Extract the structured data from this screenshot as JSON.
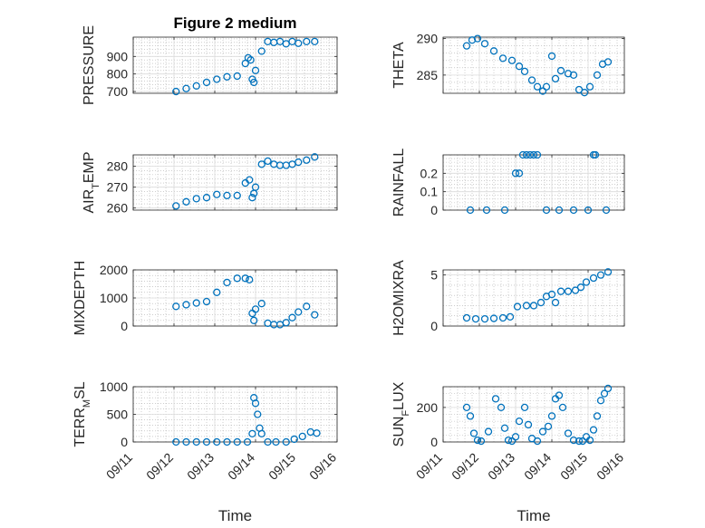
{
  "colors": {
    "marker": "#0072BD",
    "axis": "#262626",
    "grid": "#dcdcdc",
    "minor_grid": "#b0b0b0",
    "background": "#ffffff"
  },
  "x_tick_labels": [
    "09/11",
    "09/12",
    "09/13",
    "09/14",
    "09/15",
    "09/16"
  ],
  "x_axis_label": "Time",
  "chart_data": [
    {
      "type": "scatter",
      "title": "Figure 2 medium",
      "ylabel": "PRESSURE",
      "ylim": [
        690,
        1010
      ],
      "yticks": [
        700,
        800,
        900
      ],
      "ytick_labels": [
        "700",
        "800",
        "900"
      ],
      "xlim": [
        0,
        5
      ],
      "grid": true,
      "marker": "open-circle",
      "x": [
        1.05,
        1.3,
        1.55,
        1.8,
        2.05,
        2.3,
        2.55,
        2.75,
        2.82,
        2.88,
        2.92,
        2.96,
        3.0,
        3.15,
        3.3,
        3.45,
        3.6,
        3.75,
        3.9,
        4.05,
        4.25,
        4.45
      ],
      "y": [
        700,
        717,
        732,
        752,
        770,
        784,
        788,
        860,
        892,
        880,
        770,
        752,
        820,
        930,
        985,
        980,
        985,
        972,
        985,
        975,
        985,
        985
      ]
    },
    {
      "type": "scatter",
      "title": "",
      "ylabel": "THETA",
      "ylim": [
        282.5,
        290.2
      ],
      "yticks": [
        285,
        290
      ],
      "ytick_labels": [
        "285",
        "290"
      ],
      "xlim": [
        0,
        5
      ],
      "grid": true,
      "marker": "open-circle",
      "x": [
        0.65,
        0.8,
        0.95,
        1.15,
        1.4,
        1.65,
        1.9,
        2.1,
        2.25,
        2.45,
        2.6,
        2.75,
        2.85,
        3.0,
        3.1,
        3.25,
        3.45,
        3.6,
        3.75,
        3.9,
        4.05,
        4.25,
        4.4,
        4.55
      ],
      "y": [
        289.0,
        289.8,
        290.0,
        289.3,
        288.3,
        287.3,
        287.0,
        286.2,
        285.5,
        284.3,
        283.4,
        282.8,
        283.4,
        287.6,
        284.5,
        285.6,
        285.2,
        285.0,
        283.0,
        282.6,
        283.4,
        285.0,
        286.5,
        286.8
      ]
    },
    {
      "type": "scatter",
      "title": "",
      "ylabel": "AIR_TEMP",
      "ylim": [
        259,
        285.5
      ],
      "yticks": [
        260,
        270,
        280
      ],
      "ytick_labels": [
        "260",
        "270",
        "280"
      ],
      "xlim": [
        0,
        5
      ],
      "grid": true,
      "marker": "open-circle",
      "x": [
        1.05,
        1.3,
        1.55,
        1.8,
        2.05,
        2.3,
        2.55,
        2.75,
        2.85,
        2.92,
        2.96,
        3.0,
        3.15,
        3.3,
        3.45,
        3.6,
        3.75,
        3.9,
        4.05,
        4.25,
        4.45
      ],
      "y": [
        261,
        263,
        264.5,
        265,
        266.5,
        266,
        266,
        272,
        273.5,
        265,
        267,
        270,
        281,
        282.5,
        281,
        280.5,
        280.5,
        281,
        282,
        283,
        284.5
      ]
    },
    {
      "type": "scatter",
      "title": "",
      "ylabel": "RAINFALL",
      "ylim": [
        0,
        0.3
      ],
      "yticks": [
        0,
        0.1,
        0.2
      ],
      "ytick_labels": [
        "0",
        "0.1",
        "0.2"
      ],
      "xlim": [
        0,
        5
      ],
      "grid": true,
      "marker": "open-circle",
      "x": [
        0.75,
        1.2,
        1.7,
        2.0,
        2.1,
        2.2,
        2.3,
        2.4,
        2.5,
        2.6,
        2.85,
        3.2,
        3.6,
        4.0,
        4.15,
        4.2,
        4.5
      ],
      "y": [
        0,
        0,
        0,
        0.2,
        0.2,
        0.3,
        0.3,
        0.3,
        0.3,
        0.3,
        0,
        0,
        0,
        0,
        0.3,
        0.3,
        0
      ]
    },
    {
      "type": "scatter",
      "title": "",
      "ylabel": "MIXDEPTH",
      "ylim": [
        0,
        2000
      ],
      "yticks": [
        0,
        1000,
        2000
      ],
      "ytick_labels": [
        "0",
        "1000",
        "2000"
      ],
      "xlim": [
        0,
        5
      ],
      "grid": true,
      "marker": "open-circle",
      "x": [
        1.05,
        1.3,
        1.55,
        1.8,
        2.05,
        2.3,
        2.55,
        2.75,
        2.85,
        2.92,
        2.96,
        3.0,
        3.15,
        3.3,
        3.45,
        3.6,
        3.75,
        3.9,
        4.05,
        4.25,
        4.45
      ],
      "y": [
        700,
        760,
        820,
        870,
        1200,
        1550,
        1700,
        1700,
        1650,
        450,
        200,
        600,
        800,
        100,
        50,
        50,
        120,
        300,
        500,
        700,
        400
      ]
    },
    {
      "type": "scatter",
      "title": "",
      "ylabel": "H2OMIXRA",
      "ylim": [
        0,
        5.5
      ],
      "yticks": [
        0,
        5
      ],
      "ytick_labels": [
        "0",
        "5"
      ],
      "xlim": [
        0,
        5
      ],
      "grid": true,
      "marker": "open-circle",
      "x": [
        0.65,
        0.9,
        1.15,
        1.4,
        1.65,
        1.85,
        2.05,
        2.3,
        2.5,
        2.7,
        2.85,
        3.0,
        3.1,
        3.25,
        3.45,
        3.65,
        3.8,
        3.95,
        4.15,
        4.35,
        4.55
      ],
      "y": [
        0.8,
        0.7,
        0.7,
        0.75,
        0.8,
        0.9,
        1.9,
        2.0,
        2.0,
        2.3,
        2.9,
        3.1,
        2.3,
        3.4,
        3.4,
        3.5,
        3.8,
        4.3,
        4.7,
        5.0,
        5.3
      ]
    },
    {
      "type": "scatter",
      "title": "",
      "ylabel": "TERR_MSL",
      "ylim": [
        0,
        1000
      ],
      "yticks": [
        0,
        500,
        1000
      ],
      "ytick_labels": [
        "0",
        "500",
        "1000"
      ],
      "xlim": [
        0,
        5
      ],
      "grid": true,
      "marker": "open-circle",
      "x": [
        1.05,
        1.3,
        1.55,
        1.8,
        2.05,
        2.3,
        2.55,
        2.8,
        2.92,
        2.96,
        3.0,
        3.05,
        3.1,
        3.15,
        3.3,
        3.5,
        3.75,
        3.95,
        4.15,
        4.35,
        4.5
      ],
      "y": [
        0,
        0,
        0,
        0,
        0,
        0,
        0,
        0,
        150,
        800,
        700,
        500,
        250,
        150,
        0,
        0,
        0,
        50,
        100,
        180,
        160
      ]
    },
    {
      "type": "scatter",
      "title": "",
      "ylabel": "SUN_FLUX",
      "ylim": [
        0,
        320
      ],
      "yticks": [
        0,
        200
      ],
      "ytick_labels": [
        "0",
        "200"
      ],
      "xlim": [
        0,
        5
      ],
      "grid": true,
      "marker": "open-circle",
      "x": [
        0.65,
        0.75,
        0.85,
        0.95,
        1.05,
        1.25,
        1.45,
        1.6,
        1.7,
        1.8,
        1.9,
        2.0,
        2.1,
        2.25,
        2.35,
        2.45,
        2.6,
        2.75,
        2.9,
        3.0,
        3.1,
        3.2,
        3.3,
        3.45,
        3.6,
        3.75,
        3.85,
        3.95,
        4.05,
        4.15,
        4.25,
        4.35,
        4.45,
        4.55
      ],
      "y": [
        200,
        150,
        50,
        10,
        5,
        60,
        250,
        200,
        80,
        10,
        5,
        30,
        120,
        200,
        100,
        20,
        5,
        60,
        90,
        150,
        250,
        270,
        200,
        50,
        10,
        5,
        5,
        30,
        10,
        70,
        150,
        240,
        280,
        310
      ]
    }
  ]
}
